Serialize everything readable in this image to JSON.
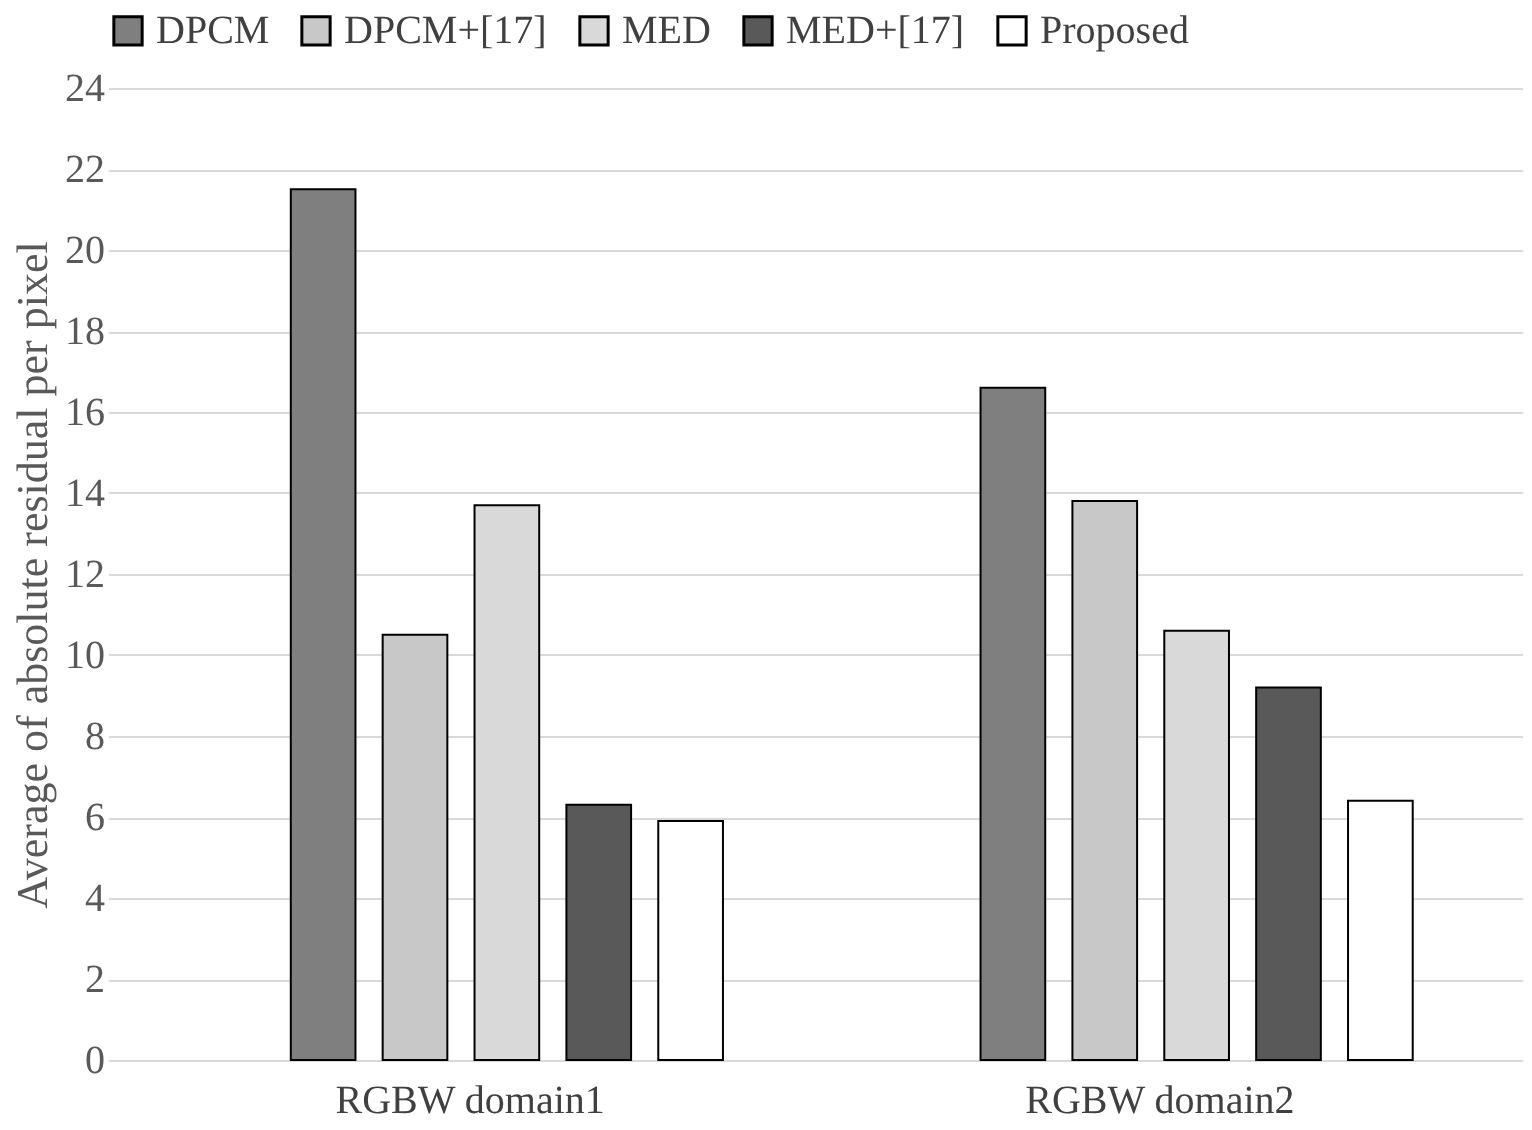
{
  "chart_data": {
    "type": "bar",
    "ylabel": "Average of absolute residual per pixel",
    "categories": [
      "RGBW domain1",
      "RGBW domain2"
    ],
    "series": [
      {
        "name": "DPCM",
        "color": "#7f7f7f",
        "values": [
          21.5,
          16.6
        ]
      },
      {
        "name": "DPCM+[17]",
        "color": "#c8c8c8",
        "values": [
          10.5,
          13.8
        ]
      },
      {
        "name": "MED",
        "color": "#d9d9d9",
        "values": [
          13.7,
          10.6
        ]
      },
      {
        "name": "MED+[17]",
        "color": "#595959",
        "values": [
          6.3,
          9.2
        ]
      },
      {
        "name": "Proposed",
        "color": "#ffffff",
        "values": [
          5.9,
          6.4
        ]
      }
    ],
    "ylim": [
      0,
      24
    ],
    "yticks": [
      0,
      2,
      4,
      6,
      8,
      10,
      12,
      14,
      16,
      18,
      20,
      22,
      24
    ],
    "grid": "y",
    "legend": "top"
  }
}
